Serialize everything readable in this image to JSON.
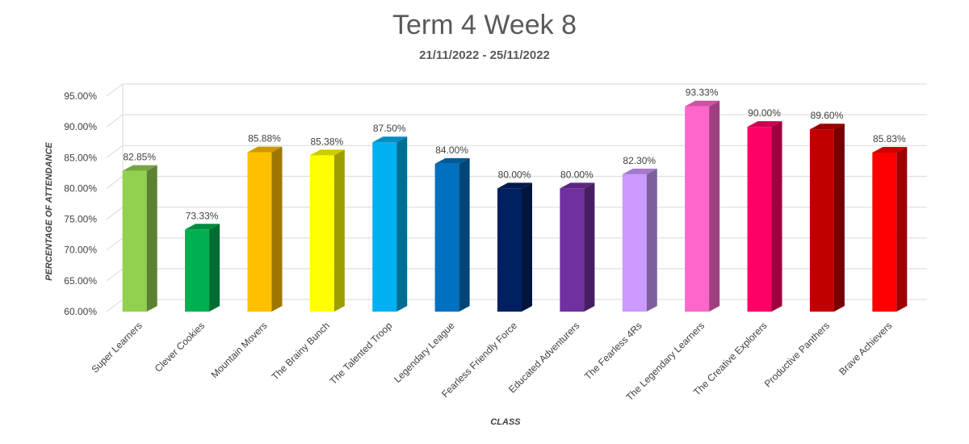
{
  "chart_data": {
    "type": "bar",
    "title": "Term 4 Week 8",
    "subtitle": "21/11/2022 - 25/11/2022",
    "xlabel": "CLASS",
    "ylabel": "PERCENTAGE OF ATTENDANCE",
    "ylim": [
      60,
      95
    ],
    "yticks": [
      60,
      65,
      70,
      75,
      80,
      85,
      90,
      95
    ],
    "ytick_labels": [
      "60.00%",
      "65.00%",
      "70.00%",
      "75.00%",
      "80.00%",
      "85.00%",
      "90.00%",
      "95.00%"
    ],
    "grid": true,
    "legend": "none",
    "categories": [
      "Super Learners",
      "Clever Cookies",
      "Mountain Movers",
      "The Brainy Bunch",
      "The Talented Troop",
      "Legendary League",
      "Fearless Friendly Force",
      "Educated Adventurers",
      "The Fearless 4Rs",
      "The Legendary Learners",
      "The Creative Explorers",
      "Productive Panthers",
      "Brave Achievers"
    ],
    "values": [
      82.85,
      73.33,
      85.88,
      85.38,
      87.5,
      84.0,
      80.0,
      80.0,
      82.3,
      93.33,
      90.0,
      89.6,
      85.83
    ],
    "value_labels": [
      "82.85%",
      "73.33%",
      "85.88%",
      "85.38%",
      "87.50%",
      "84.00%",
      "80.00%",
      "80.00%",
      "82.30%",
      "93.33%",
      "90.00%",
      "89.60%",
      "85.83%"
    ],
    "colors": [
      "#92D050",
      "#00B050",
      "#FFC000",
      "#FFFF00",
      "#00B0F0",
      "#0070C0",
      "#002060",
      "#7030A0",
      "#CC99FF",
      "#FF66CC",
      "#FF0066",
      "#C00000",
      "#FF0000"
    ]
  }
}
